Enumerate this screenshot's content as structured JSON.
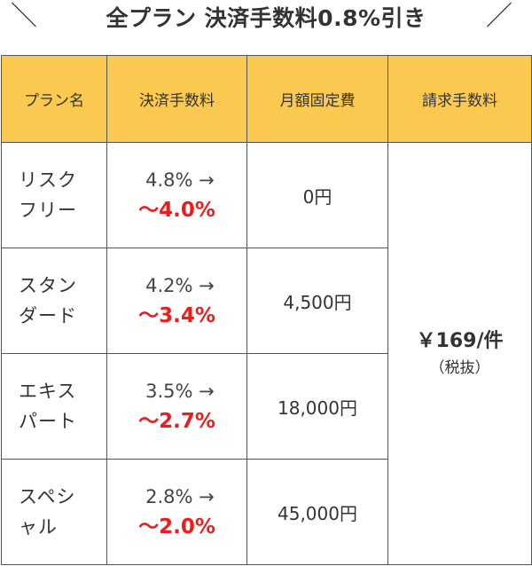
{
  "banner": {
    "slash_left": "＼",
    "title": "全プラン 決済手数料0.8%引き",
    "slash_right": "／"
  },
  "table": {
    "headers": [
      "プラン名",
      "決済手数料",
      "月額固定費",
      "請求手数料"
    ],
    "rows": [
      {
        "name_line1": "リスク",
        "name_line2": "フリー",
        "fee_old": "4.8% →",
        "fee_new": "〜4.0%",
        "monthly": "0円"
      },
      {
        "name_line1": "スタン",
        "name_line2": "ダード",
        "fee_old": "4.2% →",
        "fee_new": "〜3.4%",
        "monthly": "4,500円"
      },
      {
        "name_line1": "エキス",
        "name_line2": "パート",
        "fee_old": "3.5% →",
        "fee_new": "〜2.7%",
        "monthly": "18,000円"
      },
      {
        "name_line1": "スペシ",
        "name_line2": "ャル",
        "fee_old": "2.8% →",
        "fee_new": "〜2.0%",
        "monthly": "45,000円"
      }
    ],
    "invoice_fee": {
      "price": "￥169/件",
      "note": "（税抜）"
    }
  },
  "colors": {
    "header_bg": "#fbc94f",
    "discount_red": "#ee1c1c",
    "border": "#555555",
    "text": "#333333"
  }
}
